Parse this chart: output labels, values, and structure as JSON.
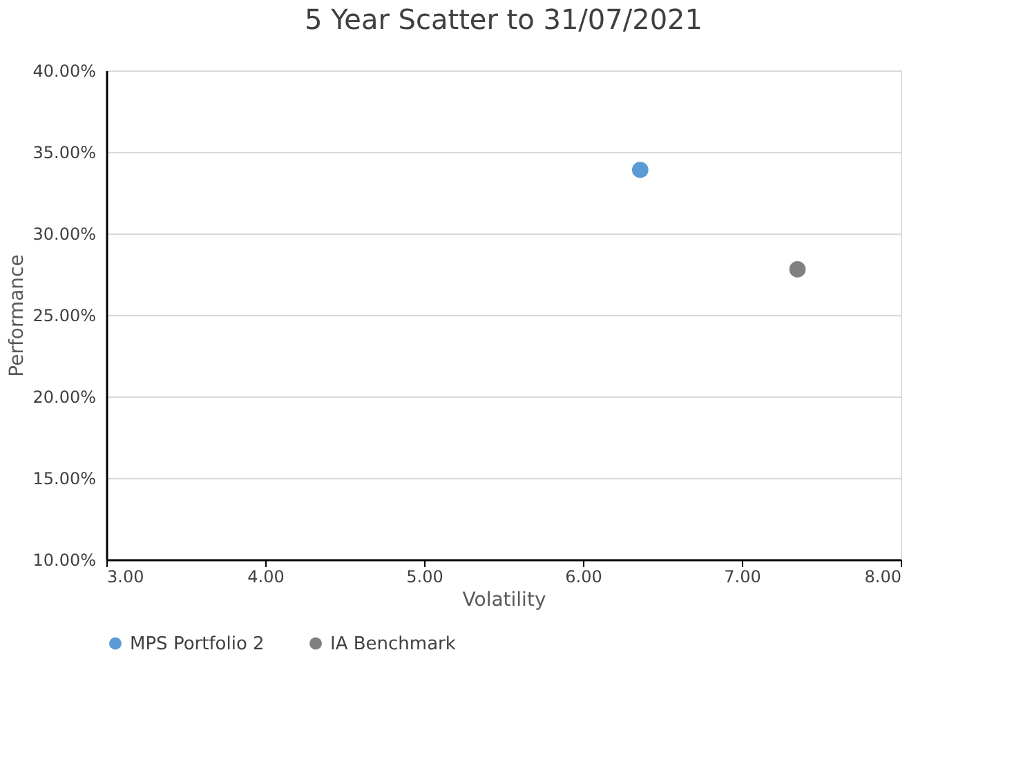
{
  "chart_data": {
    "type": "scatter",
    "title": "5 Year Scatter to 31/07/2021",
    "xlabel": "Volatility",
    "ylabel": "Performance",
    "series": [
      {
        "name": "MPS Portfolio 2",
        "color": "#5b9bd5",
        "x": [
          6.36
        ],
        "values": [
          33.9
        ]
      },
      {
        "name": "IA Benchmark",
        "color": "#808080",
        "x": [
          7.35
        ],
        "values": [
          27.8
        ]
      }
    ],
    "xlim": [
      3,
      8
    ],
    "xticks": [
      {
        "value": 3,
        "label": "3.00"
      },
      {
        "value": 4,
        "label": "4.00"
      },
      {
        "value": 5,
        "label": "5.00"
      },
      {
        "value": 6,
        "label": "6.00"
      },
      {
        "value": 7,
        "label": "7.00"
      },
      {
        "value": 8,
        "label": "8.00"
      }
    ],
    "ylim": [
      10,
      40
    ],
    "yticks": [
      {
        "value": 10,
        "label": "10.00%"
      },
      {
        "value": 15,
        "label": "15.00%"
      },
      {
        "value": 20,
        "label": "20.00%"
      },
      {
        "value": 25,
        "label": "25.00%"
      },
      {
        "value": 30,
        "label": "30.00%"
      },
      {
        "value": 35,
        "label": "35.00%"
      },
      {
        "value": 40,
        "label": "40.00%"
      }
    ],
    "grid": "y",
    "legend": "bottom",
    "marker": "circle"
  }
}
